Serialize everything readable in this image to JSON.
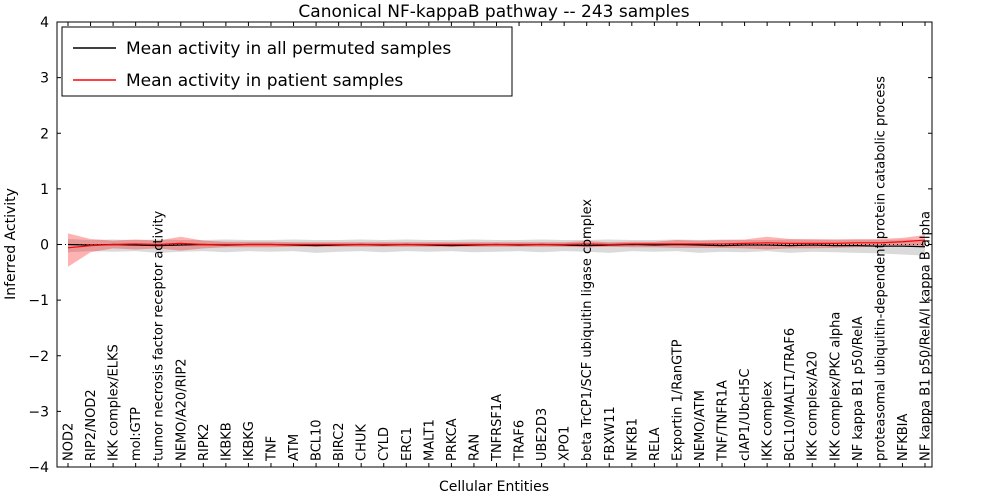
{
  "chart_data": {
    "type": "line",
    "title": "Canonical NF-kappaB pathway -- 243 samples",
    "xlabel": "Cellular Entities",
    "ylabel": "Inferred Activity",
    "ylim": [
      -4,
      4
    ],
    "yticks": [
      -4,
      -3,
      -2,
      -1,
      0,
      1,
      2,
      3,
      4
    ],
    "grid": false,
    "legend_position": "upper left",
    "zero_line": {
      "y": 0,
      "style": "dotted",
      "color": "#000000"
    },
    "categories": [
      "NOD2",
      "RIP2/NOD2",
      "IKK complex/ELKS",
      "mol:GTP",
      "tumor necrosis factor receptor activity",
      "NEMO/A20/RIP2",
      "RIPK2",
      "IKBKB",
      "IKBKG",
      "TNF",
      "ATM",
      "BCL10",
      "BIRC2",
      "CHUK",
      "CYLD",
      "ERC1",
      "MALT1",
      "PRKCA",
      "RAN",
      "TNFRSF1A",
      "TRAF6",
      "UBE2D3",
      "XPO1",
      "beta TrCP1/SCF ubiquitin ligase complex",
      "FBXW11",
      "NFKB1",
      "RELA",
      "Exportin 1/RanGTP",
      "NEMO/ATM",
      "TNF/TNFR1A",
      "cIAP1/UbcH5C",
      "IKK complex",
      "BCL10/MALT1/TRAF6",
      "IKK complex/A20",
      "IKK complex/PKC alpha",
      "NF kappa B1 p50/RelA",
      "proteasomal ubiquitin-dependent protein catabolic process",
      "NFKBIA",
      "NF kappa B1 p50/RelA/I kappa B alpha"
    ],
    "series": [
      {
        "name": "Mean activity in all permuted samples",
        "color": "#000000",
        "band_color": "#bbbbbb",
        "band_opacity": 0.55,
        "values": [
          0.0,
          -0.01,
          0.0,
          -0.01,
          -0.02,
          -0.01,
          0.0,
          -0.01,
          0.0,
          0.0,
          -0.01,
          -0.02,
          -0.01,
          0.0,
          -0.01,
          0.0,
          -0.01,
          -0.02,
          -0.01,
          0.0,
          -0.01,
          0.0,
          -0.01,
          -0.02,
          -0.01,
          0.0,
          -0.01,
          0.0,
          -0.01,
          -0.02,
          -0.01,
          -0.01,
          -0.02,
          -0.01,
          -0.02,
          -0.02,
          -0.03,
          -0.03,
          -0.04
        ],
        "band_upper": [
          0.1,
          0.08,
          0.09,
          0.08,
          0.09,
          0.08,
          0.08,
          0.09,
          0.08,
          0.08,
          0.09,
          0.08,
          0.08,
          0.09,
          0.08,
          0.09,
          0.08,
          0.08,
          0.09,
          0.08,
          0.08,
          0.09,
          0.08,
          0.08,
          0.09,
          0.08,
          0.08,
          0.09,
          0.08,
          0.09,
          0.08,
          0.08,
          0.09,
          0.08,
          0.09,
          0.08,
          0.08,
          0.09,
          0.08
        ],
        "band_lower": [
          -0.14,
          -0.12,
          -0.13,
          -0.12,
          -0.15,
          -0.13,
          -0.12,
          -0.14,
          -0.12,
          -0.13,
          -0.12,
          -0.15,
          -0.13,
          -0.12,
          -0.14,
          -0.12,
          -0.13,
          -0.12,
          -0.14,
          -0.13,
          -0.12,
          -0.14,
          -0.12,
          -0.13,
          -0.15,
          -0.12,
          -0.13,
          -0.12,
          -0.15,
          -0.13,
          -0.14,
          -0.12,
          -0.15,
          -0.13,
          -0.14,
          -0.15,
          -0.16,
          -0.18,
          -0.2
        ]
      },
      {
        "name": "Mean activity in patient samples",
        "color": "#ff0000",
        "band_color": "#ff0000",
        "band_opacity": 0.3,
        "values": [
          -0.06,
          -0.02,
          0.0,
          0.01,
          0.0,
          0.02,
          0.0,
          0.0,
          0.0,
          0.0,
          0.0,
          0.0,
          0.0,
          0.0,
          0.0,
          0.0,
          0.0,
          0.0,
          0.0,
          0.0,
          0.0,
          0.0,
          0.0,
          0.01,
          0.0,
          0.01,
          0.01,
          0.01,
          0.01,
          0.01,
          0.02,
          0.03,
          0.02,
          0.02,
          0.02,
          0.03,
          0.03,
          0.05,
          0.08
        ],
        "band_upper": [
          0.2,
          0.1,
          0.07,
          0.09,
          0.07,
          0.14,
          0.07,
          0.05,
          0.05,
          0.05,
          0.04,
          0.04,
          0.04,
          0.04,
          0.04,
          0.04,
          0.04,
          0.04,
          0.04,
          0.04,
          0.04,
          0.04,
          0.04,
          0.06,
          0.04,
          0.05,
          0.05,
          0.08,
          0.07,
          0.08,
          0.09,
          0.14,
          0.1,
          0.1,
          0.09,
          0.1,
          0.1,
          0.12,
          0.17
        ],
        "band_lower": [
          -0.4,
          -0.14,
          -0.07,
          -0.09,
          -0.07,
          -0.11,
          -0.07,
          -0.05,
          -0.05,
          -0.05,
          -0.04,
          -0.04,
          -0.04,
          -0.04,
          -0.04,
          -0.04,
          -0.04,
          -0.04,
          -0.04,
          -0.04,
          -0.04,
          -0.04,
          -0.04,
          -0.05,
          -0.04,
          -0.05,
          -0.05,
          -0.06,
          -0.06,
          -0.06,
          -0.07,
          -0.09,
          -0.07,
          -0.07,
          -0.06,
          -0.05,
          -0.04,
          -0.03,
          -0.02
        ]
      }
    ]
  }
}
